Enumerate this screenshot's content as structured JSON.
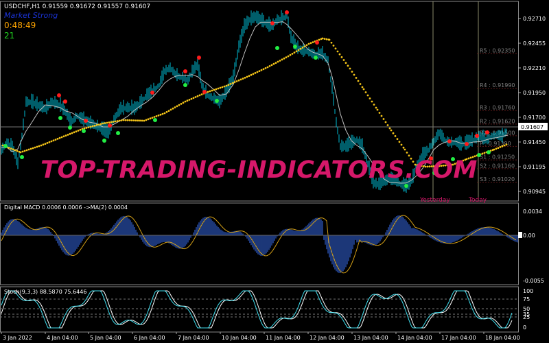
{
  "colors": {
    "background": "#000000",
    "price_candles": "#00bcd4",
    "moving_average": "#c0c0c0",
    "trend_dots": "#f5c518",
    "signal_up": "#22ee44",
    "signal_down": "#ff1a1a",
    "macd_hist": "#2e5cc8",
    "macd_signal": "#d4a017",
    "stoch_main": "#40e0f0",
    "stoch_signal": "#ffffff",
    "label_blue": "#1a33d6",
    "timer_orange": "#ffa500",
    "count_green": "#22dd22",
    "level_text": "#808080",
    "watermark": "#d6186a",
    "axis_text": "#ffffff"
  },
  "main": {
    "symbol_header": "USDCHF,H1  0.91559 0.91672 0.91557 0.91607",
    "market_state": "Market Strong",
    "countdown": "0:48:49",
    "count": "21",
    "current_price": "0.91607",
    "price_ticks": [
      "0.92710",
      "0.92455",
      "0.92210",
      "0.91950",
      "0.91700",
      "0.91450",
      "0.91195",
      "0.90945"
    ],
    "levels": [
      {
        "label": "R5 : 0.92350"
      },
      {
        "label": "R4 : 0.91990"
      },
      {
        "label": "R3 : 0.91760"
      },
      {
        "label": "R2 : 0.91620"
      },
      {
        "label": "R1 : 0.91500"
      },
      {
        "label": "P : 0.91390"
      },
      {
        "label": "S1 : 0.91250"
      },
      {
        "label": "S2 : 0.91160"
      },
      {
        "label": "S3 : 0.91020"
      }
    ],
    "yesterday_label": "Yesterday",
    "today_label": "Today"
  },
  "macd": {
    "header": "Digital MACD 0.0006 0.0006  ->MA(2) 0.0004",
    "ticks": [
      "0.0034",
      "0.00",
      "-0.0055"
    ]
  },
  "stoch": {
    "header": "Stoch(9,3,3) 88.5870 75.6446",
    "ticks": [
      "100",
      "75",
      "50",
      "35",
      "25",
      "0"
    ]
  },
  "time_axis": [
    "3 Jan 2022",
    "4 Jan 04:00",
    "5 Jan 04:00",
    "6 Jan 04:00",
    "7 Jan 04:00",
    "10 Jan 04:00",
    "11 Jan 04:00",
    "12 Jan 04:00",
    "13 Jan 04:00",
    "14 Jan 04:00",
    "17 Jan 04:00",
    "18 Jan 04:00"
  ],
  "watermark_text": "TOP-TRADING-INDICATORS.COM"
}
